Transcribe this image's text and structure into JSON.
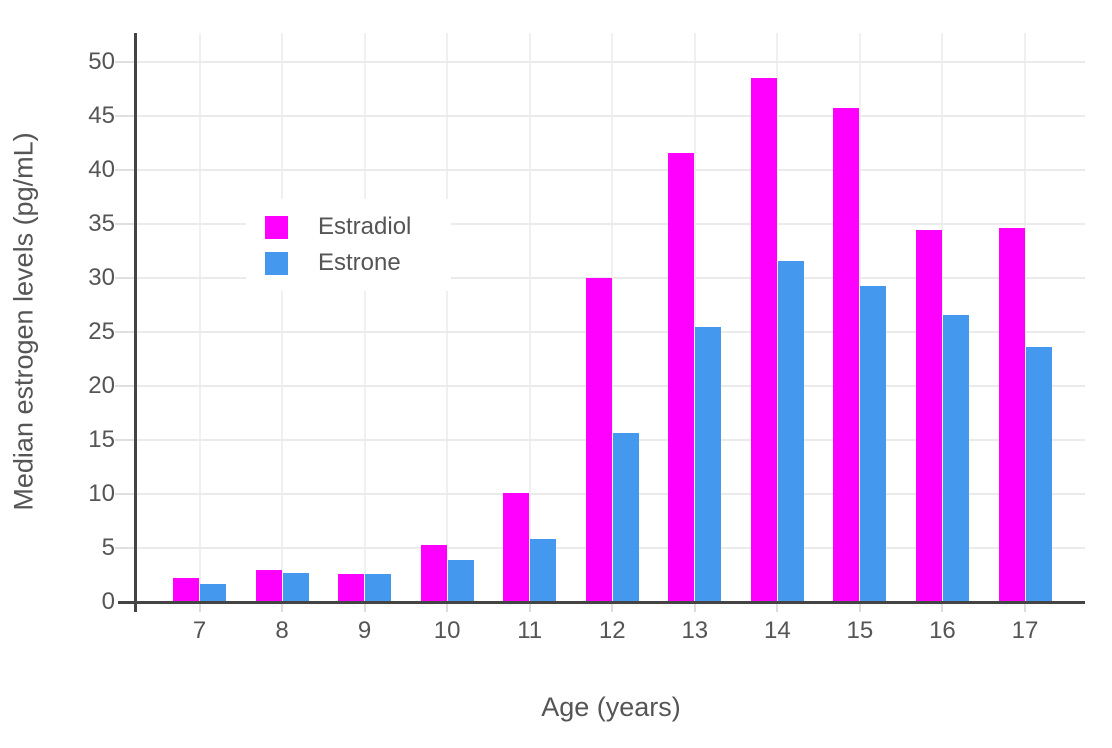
{
  "chart_data": {
    "type": "bar",
    "title": "",
    "xlabel": "Age (years)",
    "ylabel": "Median estrogen levels (pg/mL)",
    "categories": [
      "7",
      "8",
      "9",
      "10",
      "11",
      "12",
      "13",
      "14",
      "15",
      "16",
      "17"
    ],
    "series": [
      {
        "name": "Estradiol",
        "color": "#FF00FF",
        "values": [
          2.2,
          3.0,
          2.6,
          5.3,
          10.1,
          30.0,
          41.6,
          48.5,
          45.8,
          34.5,
          34.6
        ]
      },
      {
        "name": "Estrone",
        "color": "#4499EE",
        "values": [
          1.7,
          2.7,
          2.6,
          3.9,
          5.8,
          15.7,
          25.5,
          31.6,
          29.3,
          26.6,
          23.6
        ]
      }
    ],
    "ylim": [
      0,
      52.7
    ],
    "yticks": [
      0,
      5,
      10,
      15,
      20,
      25,
      30,
      35,
      40,
      45,
      50
    ],
    "grid": true,
    "legend_position": "inside-top-left",
    "colors": {
      "axis_line": "#444444",
      "grid_line": "#ebebeb",
      "tick_text": "#555555",
      "background": "#ffffff"
    }
  }
}
